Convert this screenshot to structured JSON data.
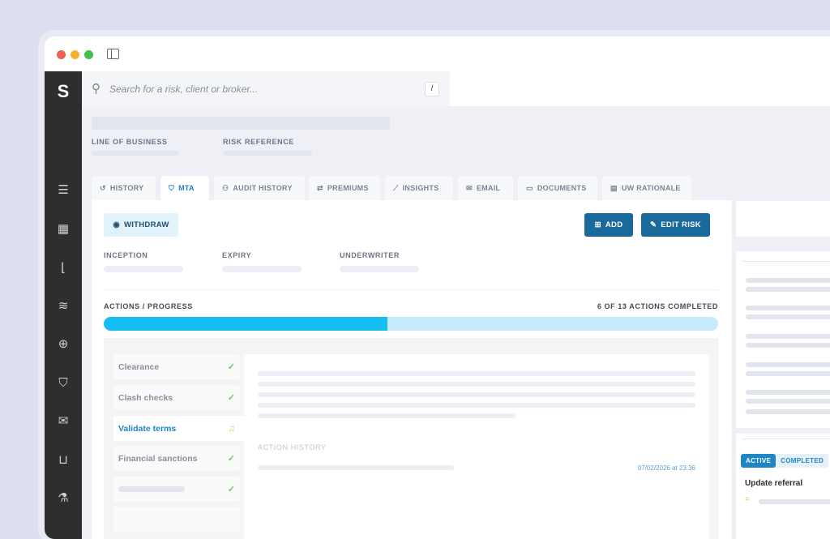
{
  "search": {
    "placeholder": "Search for a risk, client or broker...",
    "shortcut": "/"
  },
  "header": {
    "line_of_business_label": "LINE OF BUSINESS",
    "risk_reference_label": "RISK REFERENCE"
  },
  "tabs": [
    {
      "label": "HISTORY",
      "icon": "history-icon"
    },
    {
      "label": "MTA",
      "icon": "shield-check-icon",
      "active": true
    },
    {
      "label": "AUDIT HISTORY",
      "icon": "users-icon"
    },
    {
      "label": "PREMIUMS",
      "icon": "swap-icon"
    },
    {
      "label": "INSIGHTS",
      "icon": "chart-icon"
    },
    {
      "label": "EMAIL",
      "icon": "mail-icon"
    },
    {
      "label": "DOCUMENTS",
      "icon": "folder-icon"
    },
    {
      "label": "UW RATIONALE",
      "icon": "document-icon"
    }
  ],
  "toolbar": {
    "withdraw": "WITHDRAW",
    "add": "ADD",
    "edit_risk": "EDIT RISK"
  },
  "fields": {
    "inception": "INCEPTION",
    "expiry": "EXPIRY",
    "underwriter": "UNDERWRITER"
  },
  "progress": {
    "label": "ACTIONS / PROGRESS",
    "status": "6 OF 13 ACTIONS COMPLETED",
    "completed": 6,
    "total": 13,
    "fill_color": "#16bdf0",
    "track_color": "#c6ebfa"
  },
  "actions": [
    {
      "label": "Clearance",
      "status": "done"
    },
    {
      "label": "Clash checks",
      "status": "done"
    },
    {
      "label": "Validate terms",
      "status": "pending",
      "active": true
    },
    {
      "label": "Financial sanctions",
      "status": "done"
    }
  ],
  "detail": {
    "history_label": "ACTION HISTORY",
    "timestamp": "07/02/2026 at 23:36"
  },
  "right": {
    "tab_active": "ACTIVE",
    "tab_completed": "COMPLETED",
    "task": "Update referral"
  },
  "colors": {
    "primary": "#19699a",
    "accent": "#1e86c4",
    "sidebar": "#2e2e2e"
  }
}
